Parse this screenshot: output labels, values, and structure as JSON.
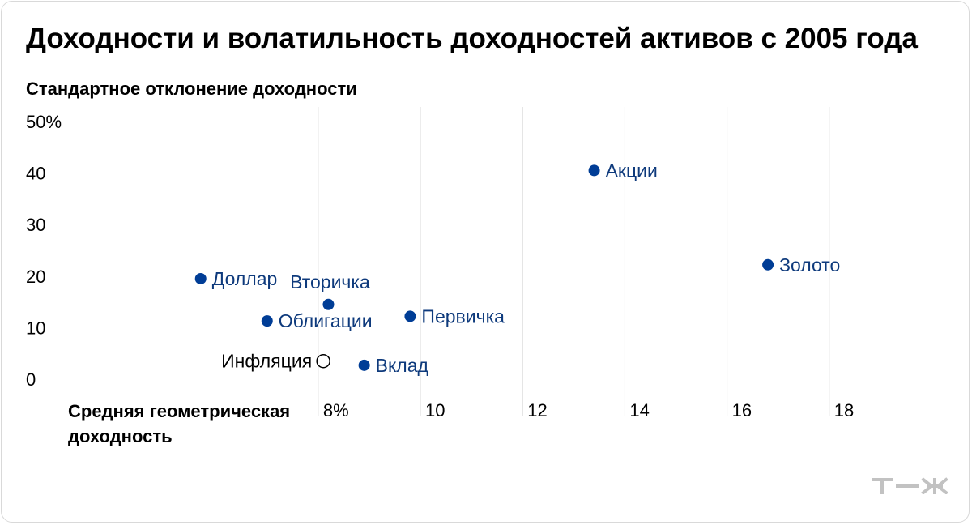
{
  "colors": {
    "point": "#003d96",
    "point_label": "#0e3a7c",
    "grid": "#dcdcdc",
    "logo": "#c2c2c2"
  },
  "chart_data": {
    "type": "scatter",
    "title": "Доходности и волатильность доходностей активов с 2005 года",
    "ylabel": "Стандартное отклонение доходности",
    "xlabel": "Средняя геометрическая доходность",
    "xlim": [
      3.2,
      20
    ],
    "ylim": [
      0,
      50
    ],
    "x_ticks": [
      {
        "value": 8,
        "label": "8%"
      },
      {
        "value": 10,
        "label": "10"
      },
      {
        "value": 12,
        "label": "12"
      },
      {
        "value": 14,
        "label": "14"
      },
      {
        "value": 16,
        "label": "16"
      },
      {
        "value": 18,
        "label": "18"
      }
    ],
    "y_ticks": [
      {
        "value": 50,
        "label": "50%"
      },
      {
        "value": 40,
        "label": "40"
      },
      {
        "value": 30,
        "label": "30"
      },
      {
        "value": 20,
        "label": "20"
      },
      {
        "value": 10,
        "label": "10"
      },
      {
        "value": 0,
        "label": "0"
      }
    ],
    "grid": "vertical",
    "points": [
      {
        "name": "Акции",
        "x": 13.4,
        "y": 40.5,
        "filled": true,
        "label_pos": "right"
      },
      {
        "name": "Золото",
        "x": 16.8,
        "y": 22.2,
        "filled": true,
        "label_pos": "right"
      },
      {
        "name": "Доллар",
        "x": 5.7,
        "y": 19.5,
        "filled": true,
        "label_pos": "right"
      },
      {
        "name": "Вторичка",
        "x": 8.2,
        "y": 14.5,
        "filled": true,
        "label_pos": "above"
      },
      {
        "name": "Облигации",
        "x": 7.0,
        "y": 11.3,
        "filled": true,
        "label_pos": "right"
      },
      {
        "name": "Первичка",
        "x": 9.8,
        "y": 12.2,
        "filled": true,
        "label_pos": "right"
      },
      {
        "name": "Инфляция",
        "x": 8.1,
        "y": 3.5,
        "filled": false,
        "label_pos": "left"
      },
      {
        "name": "Вклад",
        "x": 8.9,
        "y": 2.7,
        "filled": true,
        "label_pos": "right"
      }
    ]
  },
  "brand": {
    "logo_text": "т—ж"
  }
}
